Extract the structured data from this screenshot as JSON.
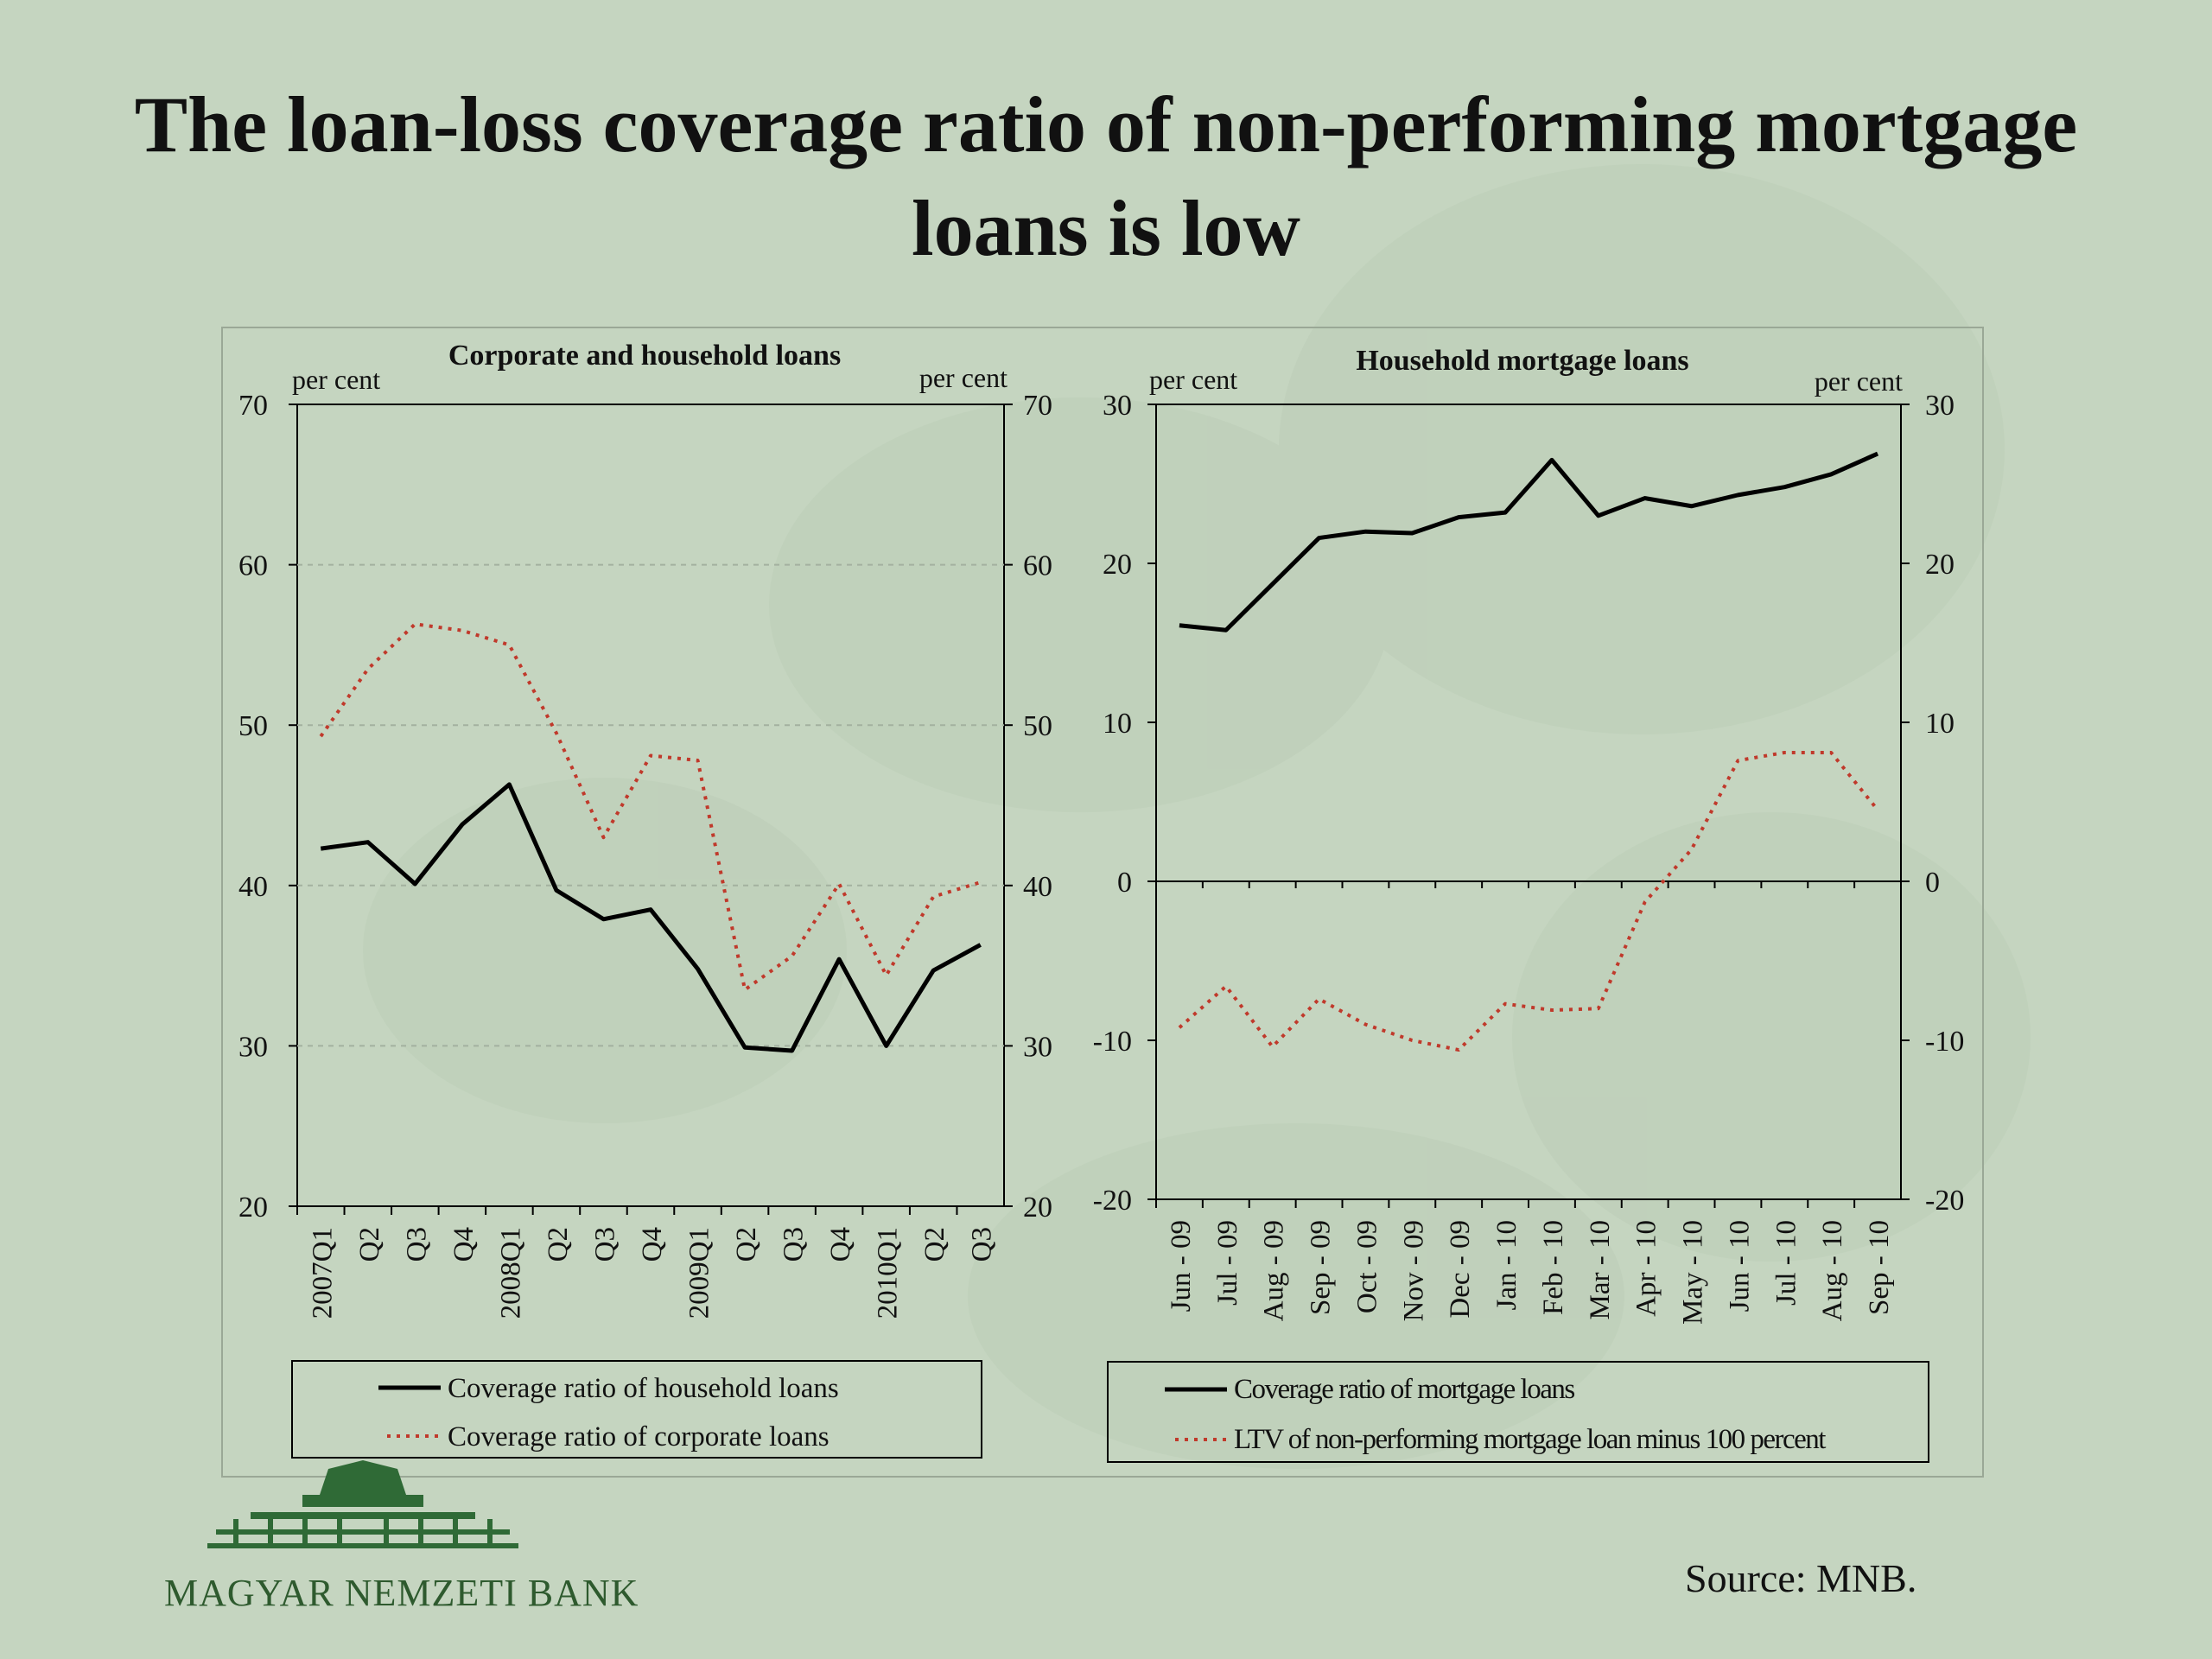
{
  "title_line1": "The loan-loss coverage ratio of non-performing mortgage",
  "title_line2": "loans is low",
  "source": "Source: MNB.",
  "logo_text": "MAGYAR NEMZETI BANK",
  "chart_data": [
    {
      "type": "line",
      "title": "Corporate and household loans",
      "left_unit": "per cent",
      "right_unit": "per cent",
      "ylim": [
        20,
        70
      ],
      "yticks": [
        20,
        30,
        40,
        50,
        60,
        70
      ],
      "grid": "horizontal-dashed",
      "categories": [
        "2007Q1",
        "Q2",
        "Q3",
        "Q4",
        "2008Q1",
        "Q2",
        "Q3",
        "Q4",
        "2009Q1",
        "Q2",
        "Q3",
        "Q4",
        "2010Q1",
        "Q2",
        "Q3"
      ],
      "series": [
        {
          "name": "Coverage ratio of household loans",
          "style": "solid",
          "color": "#000000",
          "values": [
            42.3,
            42.7,
            40.1,
            43.8,
            46.3,
            39.7,
            37.9,
            38.5,
            34.8,
            29.9,
            29.7,
            35.4,
            30.0,
            34.7,
            36.3
          ]
        },
        {
          "name": "Coverage ratio of corporate loans",
          "style": "dotted",
          "color": "#c0392b",
          "values": [
            49.3,
            53.5,
            56.3,
            55.9,
            55.0,
            49.5,
            43.0,
            48.1,
            47.8,
            33.5,
            35.6,
            40.1,
            34.4,
            39.3,
            40.2
          ]
        }
      ],
      "legend": "bottom"
    },
    {
      "type": "line",
      "title": "Household mortgage loans",
      "left_unit": "per cent",
      "right_unit": "per cent",
      "ylim": [
        -20,
        30
      ],
      "yticks": [
        -20,
        -10,
        0,
        10,
        20,
        30
      ],
      "grid": "none",
      "categories": [
        "Jun - 09",
        "Jul - 09",
        "Aug - 09",
        "Sep - 09",
        "Oct - 09",
        "Nov - 09",
        "Dec - 09",
        "Jan - 10",
        "Feb - 10",
        "Mar - 10",
        "Apr - 10",
        "May - 10",
        "Jun - 10",
        "Jul - 10",
        "Aug - 10",
        "Sep - 10"
      ],
      "series": [
        {
          "name": "Coverage ratio of mortgage loans",
          "style": "solid",
          "color": "#000000",
          "values": [
            16.1,
            15.8,
            18.7,
            21.6,
            22.0,
            21.9,
            22.9,
            23.2,
            26.5,
            23.0,
            24.1,
            23.6,
            24.3,
            24.8,
            25.6,
            26.9
          ]
        },
        {
          "name": "LTV of non-performing mortgage loan minus 100 percent",
          "style": "dotted",
          "color": "#c0392b",
          "values": [
            -9.2,
            -6.6,
            -10.4,
            -7.4,
            -9.0,
            -10.0,
            -10.6,
            -7.7,
            -8.1,
            -8.0,
            -1.3,
            2.0,
            7.6,
            8.1,
            8.1,
            4.5
          ]
        }
      ],
      "legend": "bottom"
    }
  ]
}
